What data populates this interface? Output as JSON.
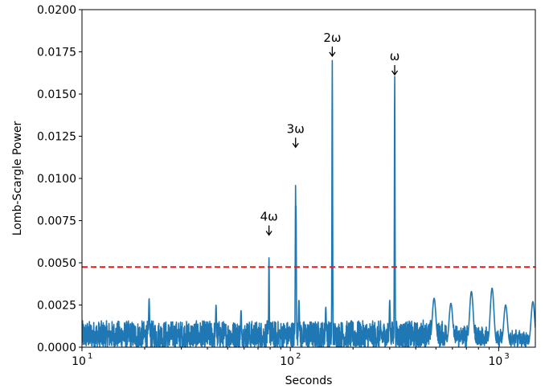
{
  "chart_data": {
    "type": "line",
    "title": "",
    "xlabel": "Seconds",
    "ylabel": "Lomb-Scargle Power",
    "xscale": "log",
    "xlim": [
      10,
      1500
    ],
    "ylim": [
      0,
      0.02
    ],
    "grid": false,
    "x_ticks": [
      {
        "value": 10,
        "base": "10",
        "exp": "1"
      },
      {
        "value": 100,
        "base": "10",
        "exp": "2"
      },
      {
        "value": 1000,
        "base": "10",
        "exp": "3"
      }
    ],
    "y_ticks": [
      "0.0000",
      "0.0025",
      "0.0050",
      "0.0075",
      "0.0100",
      "0.0125",
      "0.0150",
      "0.0175",
      "0.0200"
    ],
    "series_color": "#1f77b4",
    "threshold": {
      "value": 0.00475,
      "color": "#e41a1c",
      "style": "dashed"
    },
    "peaks": [
      {
        "x": 79,
        "y": 0.0053
      },
      {
        "x": 106,
        "y": 0.0096
      },
      {
        "x": 106.5,
        "y": 0.0084
      },
      {
        "x": 159,
        "y": 0.017
      },
      {
        "x": 317,
        "y": 0.0161
      }
    ],
    "secondary_peaks": [
      {
        "x": 21,
        "y": 0.0029
      },
      {
        "x": 44,
        "y": 0.0025
      },
      {
        "x": 58,
        "y": 0.0022
      },
      {
        "x": 110,
        "y": 0.0028
      },
      {
        "x": 148,
        "y": 0.0024
      },
      {
        "x": 300,
        "y": 0.0028
      },
      {
        "x": 490,
        "y": 0.0029
      },
      {
        "x": 590,
        "y": 0.0026
      },
      {
        "x": 740,
        "y": 0.0033
      },
      {
        "x": 930,
        "y": 0.0035
      },
      {
        "x": 1080,
        "y": 0.0025
      },
      {
        "x": 1460,
        "y": 0.0027
      }
    ],
    "annotations": [
      {
        "label": "4ω",
        "x": 79,
        "y": 0.0075
      },
      {
        "label": "3ω",
        "x": 106,
        "y": 0.0127
      },
      {
        "label": "2ω",
        "x": 159,
        "y": 0.0181
      },
      {
        "label": "ω",
        "x": 317,
        "y": 0.017
      }
    ]
  }
}
